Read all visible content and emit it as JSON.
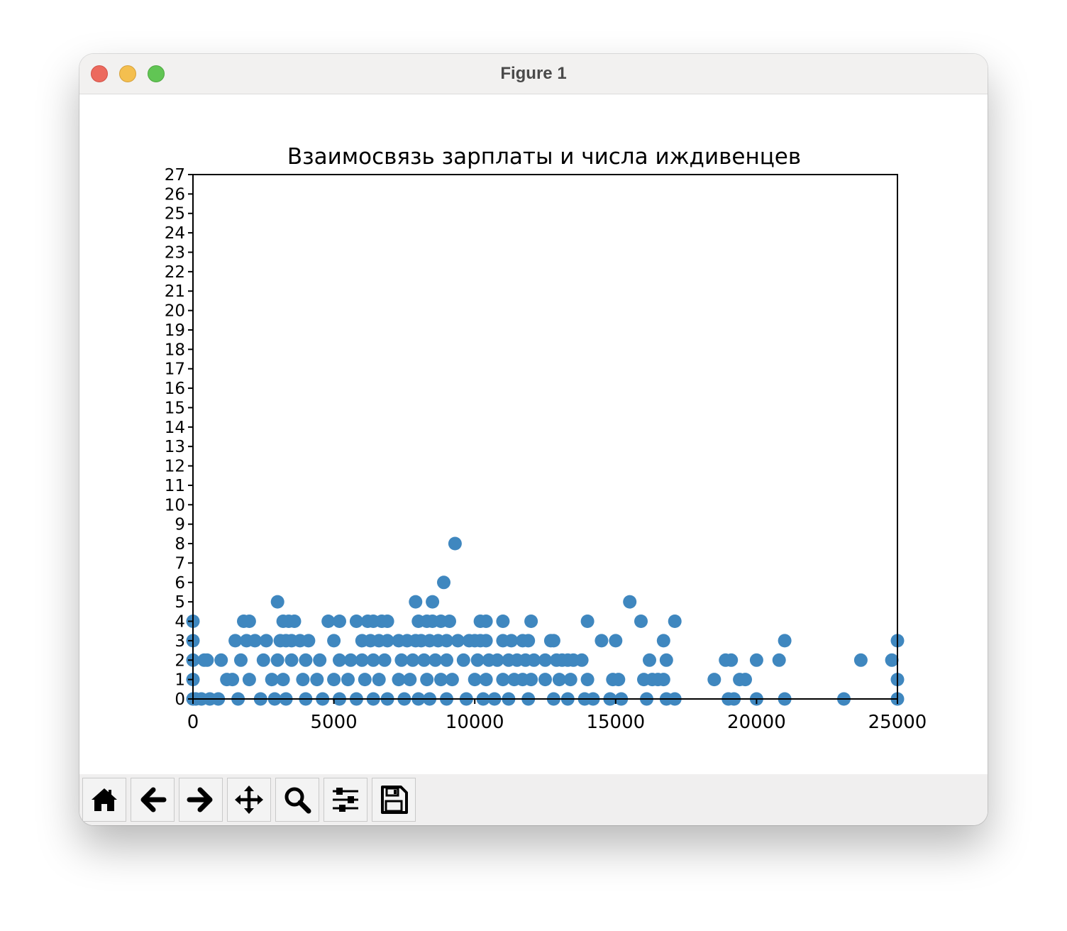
{
  "window": {
    "title": "Figure 1"
  },
  "toolbar": {
    "buttons": [
      {
        "icon": "home-icon",
        "name": "home-button"
      },
      {
        "icon": "back-arrow-icon",
        "name": "back-button"
      },
      {
        "icon": "forward-arrow-icon",
        "name": "forward-button"
      },
      {
        "icon": "pan-move-icon",
        "name": "pan-button"
      },
      {
        "icon": "zoom-magnifier-icon",
        "name": "zoom-button"
      },
      {
        "icon": "configure-sliders-icon",
        "name": "configure-subplots-button"
      },
      {
        "icon": "save-floppy-icon",
        "name": "save-button"
      }
    ]
  },
  "colors": {
    "marker": "#3f87bf",
    "axes": "#000000"
  },
  "chart_data": {
    "type": "scatter",
    "title": "Взаимосвязь зарплаты и числа иждивенцев",
    "xlabel": "",
    "ylabel": "",
    "xlim": [
      0,
      25000
    ],
    "ylim": [
      0,
      27
    ],
    "x_ticks": [
      "0",
      "5000",
      "10000",
      "15000",
      "20000",
      "25000"
    ],
    "y_ticks": [
      "0",
      "1",
      "2",
      "3",
      "4",
      "5",
      "6",
      "7",
      "8",
      "9",
      "10",
      "11",
      "12",
      "13",
      "14",
      "15",
      "16",
      "17",
      "18",
      "19",
      "20",
      "21",
      "22",
      "23",
      "24",
      "25",
      "26",
      "27"
    ],
    "grid": false,
    "series": [
      {
        "points": [
          [
            0,
            4
          ],
          [
            0,
            3
          ],
          [
            0,
            2
          ],
          [
            0,
            1
          ],
          [
            0,
            0
          ],
          [
            400,
            2
          ],
          [
            500,
            2
          ],
          [
            1000,
            2
          ],
          [
            100,
            0
          ],
          [
            300,
            0
          ],
          [
            600,
            0
          ],
          [
            900,
            0
          ],
          [
            1200,
            1
          ],
          [
            1400,
            1
          ],
          [
            1500,
            3
          ],
          [
            1700,
            2
          ],
          [
            1800,
            4
          ],
          [
            1900,
            3
          ],
          [
            2000,
            4
          ],
          [
            2200,
            3
          ],
          [
            2600,
            3
          ],
          [
            2000,
            1
          ],
          [
            2500,
            2
          ],
          [
            2800,
            1
          ],
          [
            1600,
            0
          ],
          [
            2400,
            0
          ],
          [
            2900,
            0
          ],
          [
            3000,
            5
          ],
          [
            3200,
            4
          ],
          [
            3400,
            4
          ],
          [
            3600,
            4
          ],
          [
            3100,
            3
          ],
          [
            3300,
            3
          ],
          [
            3500,
            3
          ],
          [
            3800,
            3
          ],
          [
            4100,
            3
          ],
          [
            3000,
            2
          ],
          [
            3500,
            2
          ],
          [
            4000,
            2
          ],
          [
            4500,
            2
          ],
          [
            3200,
            1
          ],
          [
            3900,
            1
          ],
          [
            4400,
            1
          ],
          [
            3300,
            0
          ],
          [
            4000,
            0
          ],
          [
            4600,
            0
          ],
          [
            4800,
            4
          ],
          [
            5200,
            4
          ],
          [
            5000,
            3
          ],
          [
            5200,
            2
          ],
          [
            5600,
            2
          ],
          [
            5000,
            1
          ],
          [
            5500,
            1
          ],
          [
            5200,
            0
          ],
          [
            5800,
            0
          ],
          [
            5800,
            4
          ],
          [
            6200,
            4
          ],
          [
            6400,
            4
          ],
          [
            6700,
            4
          ],
          [
            6900,
            4
          ],
          [
            6000,
            3
          ],
          [
            6300,
            3
          ],
          [
            6600,
            3
          ],
          [
            6900,
            3
          ],
          [
            6000,
            2
          ],
          [
            6400,
            2
          ],
          [
            6800,
            2
          ],
          [
            6100,
            1
          ],
          [
            6600,
            1
          ],
          [
            6400,
            0
          ],
          [
            6900,
            0
          ],
          [
            7300,
            3
          ],
          [
            7600,
            3
          ],
          [
            7900,
            3
          ],
          [
            7400,
            2
          ],
          [
            7800,
            2
          ],
          [
            7300,
            1
          ],
          [
            7700,
            1
          ],
          [
            7500,
            0
          ],
          [
            8000,
            0
          ],
          [
            7900,
            5
          ],
          [
            8500,
            5
          ],
          [
            8000,
            4
          ],
          [
            8300,
            4
          ],
          [
            8500,
            4
          ],
          [
            8800,
            4
          ],
          [
            9100,
            4
          ],
          [
            8100,
            3
          ],
          [
            8400,
            3
          ],
          [
            8700,
            3
          ],
          [
            9000,
            3
          ],
          [
            9400,
            3
          ],
          [
            8200,
            2
          ],
          [
            8600,
            2
          ],
          [
            9000,
            2
          ],
          [
            8300,
            1
          ],
          [
            8800,
            1
          ],
          [
            9200,
            1
          ],
          [
            8400,
            0
          ],
          [
            9000,
            0
          ],
          [
            8900,
            6
          ],
          [
            9300,
            8
          ],
          [
            9600,
            2
          ],
          [
            9800,
            3
          ],
          [
            10000,
            1
          ],
          [
            9700,
            0
          ],
          [
            10300,
            0
          ],
          [
            10200,
            4
          ],
          [
            10400,
            4
          ],
          [
            10000,
            3
          ],
          [
            10200,
            3
          ],
          [
            10400,
            3
          ],
          [
            10100,
            2
          ],
          [
            10500,
            2
          ],
          [
            10400,
            1
          ],
          [
            10700,
            0
          ],
          [
            11000,
            4
          ],
          [
            11000,
            3
          ],
          [
            11300,
            3
          ],
          [
            10800,
            2
          ],
          [
            11200,
            2
          ],
          [
            11500,
            2
          ],
          [
            11000,
            1
          ],
          [
            11400,
            1
          ],
          [
            11200,
            0
          ],
          [
            11700,
            3
          ],
          [
            11900,
            3
          ],
          [
            12000,
            4
          ],
          [
            11800,
            2
          ],
          [
            12100,
            2
          ],
          [
            11700,
            1
          ],
          [
            12000,
            1
          ],
          [
            11900,
            0
          ],
          [
            12500,
            2
          ],
          [
            12500,
            1
          ],
          [
            12700,
            3
          ],
          [
            12800,
            3
          ],
          [
            12900,
            2
          ],
          [
            13100,
            2
          ],
          [
            13300,
            2
          ],
          [
            13500,
            2
          ],
          [
            13800,
            2
          ],
          [
            13000,
            1
          ],
          [
            13400,
            1
          ],
          [
            12800,
            0
          ],
          [
            13300,
            0
          ],
          [
            13900,
            0
          ],
          [
            14000,
            4
          ],
          [
            14000,
            1
          ],
          [
            14200,
            0
          ],
          [
            14500,
            3
          ],
          [
            14800,
            0
          ],
          [
            15000,
            3
          ],
          [
            14900,
            1
          ],
          [
            15100,
            1
          ],
          [
            15200,
            0
          ],
          [
            15500,
            5
          ],
          [
            15900,
            4
          ],
          [
            16000,
            1
          ],
          [
            16200,
            2
          ],
          [
            16100,
            0
          ],
          [
            16300,
            1
          ],
          [
            16500,
            1
          ],
          [
            16700,
            1
          ],
          [
            16700,
            3
          ],
          [
            16800,
            2
          ],
          [
            17100,
            4
          ],
          [
            16800,
            0
          ],
          [
            17100,
            0
          ],
          [
            18500,
            1
          ],
          [
            18900,
            2
          ],
          [
            19100,
            2
          ],
          [
            19000,
            0
          ],
          [
            19200,
            0
          ],
          [
            19400,
            1
          ],
          [
            19600,
            1
          ],
          [
            20000,
            2
          ],
          [
            20000,
            0
          ],
          [
            20800,
            2
          ],
          [
            21000,
            3
          ],
          [
            21000,
            0
          ],
          [
            23100,
            0
          ],
          [
            23700,
            2
          ],
          [
            24800,
            2
          ],
          [
            25000,
            3
          ],
          [
            25000,
            1
          ],
          [
            25000,
            0
          ]
        ]
      }
    ]
  }
}
